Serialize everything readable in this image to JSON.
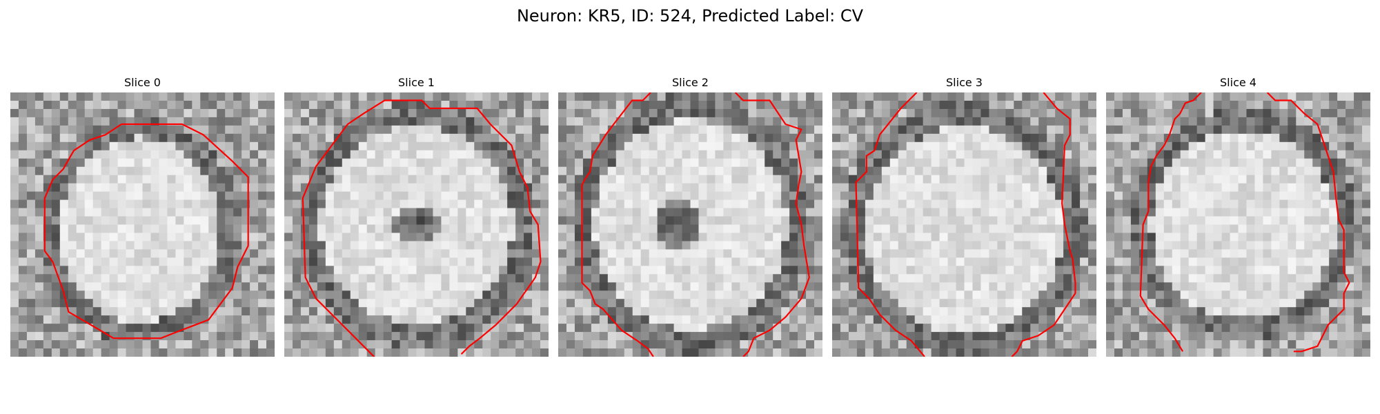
{
  "figure": {
    "title": "Neuron: KR5, ID: 524, Predicted Label: CV"
  },
  "panels": [
    {
      "title": "Slice 0"
    },
    {
      "title": "Slice 1"
    },
    {
      "title": "Slice 2"
    },
    {
      "title": "Slice 3"
    },
    {
      "title": "Slice 4"
    }
  ],
  "colors": {
    "contour": "#ff0000"
  }
}
